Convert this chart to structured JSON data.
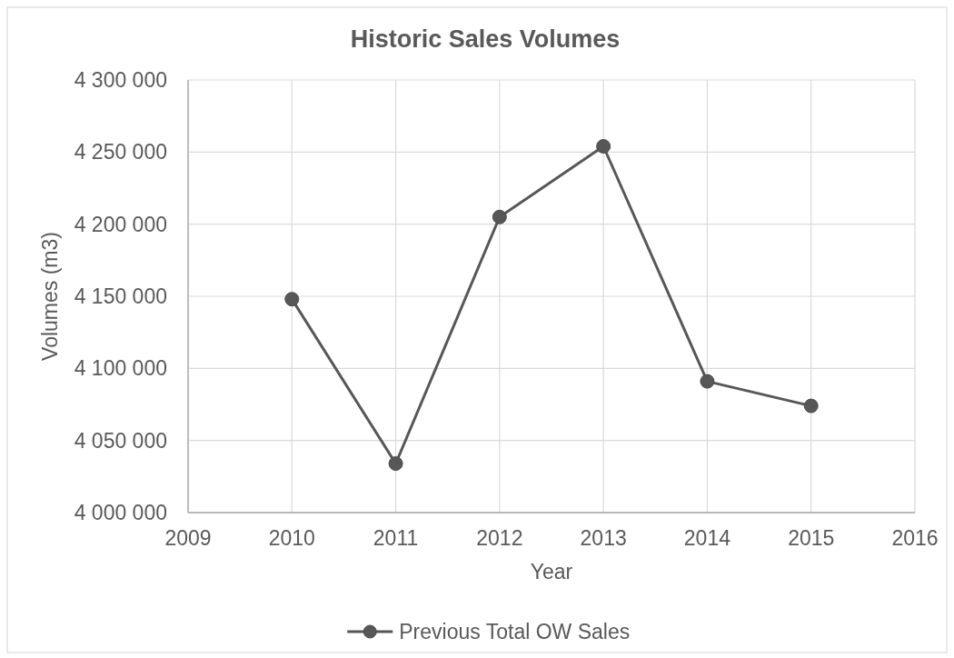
{
  "chart_data": {
    "type": "line",
    "title": "Historic Sales Volumes",
    "xlabel": "Year",
    "ylabel": "Volumes (m3)",
    "x": [
      2010,
      2011,
      2012,
      2013,
      2014,
      2015
    ],
    "series": [
      {
        "name": "Previous Total OW Sales",
        "color": "#575757",
        "values": [
          4148000,
          4034000,
          4205000,
          4254000,
          4091000,
          4074000
        ]
      }
    ],
    "xlim": [
      2009,
      2016
    ],
    "xticks": [
      2009,
      2010,
      2011,
      2012,
      2013,
      2014,
      2015,
      2016
    ],
    "ylim": [
      4000000,
      4300000
    ],
    "yticks": [
      {
        "value": 4000000,
        "label": "4 000 000"
      },
      {
        "value": 4050000,
        "label": "4 050 000"
      },
      {
        "value": 4100000,
        "label": "4 100 000"
      },
      {
        "value": 4150000,
        "label": "4 150 000"
      },
      {
        "value": 4200000,
        "label": "4 200 000"
      },
      {
        "value": 4250000,
        "label": "4 250 000"
      },
      {
        "value": 4300000,
        "label": "4 300 000"
      }
    ],
    "grid": true,
    "legend": "bottom",
    "marker": "circle"
  }
}
